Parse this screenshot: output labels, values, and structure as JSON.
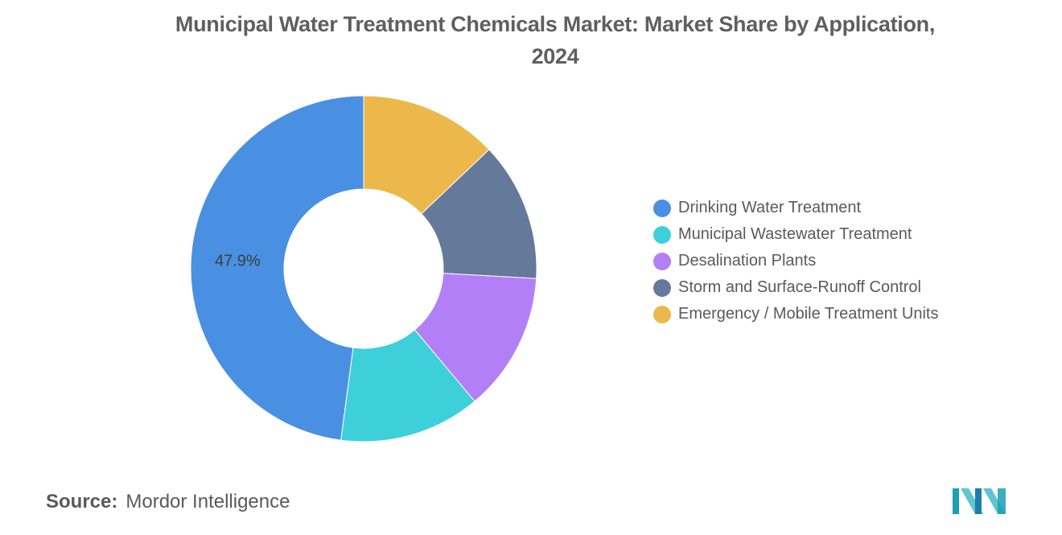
{
  "title_line1": "Municipal Water Treatment Chemicals Market: Market Share by Application,",
  "title_line2": "2024",
  "chart_data": {
    "type": "pie",
    "donut": true,
    "categories": [
      "Drinking Water Treatment",
      "Municipal Wastewater Treatment",
      "Desalination Plants",
      "Storm and Surface-Runoff Control",
      "Emergency / Mobile Treatment Units"
    ],
    "values": [
      47.9,
      13.2,
      13.0,
      13.0,
      12.9
    ],
    "value_unit": "%",
    "colors": [
      "#4a90e2",
      "#3ed0da",
      "#b27ff7",
      "#65799b",
      "#ecb74b"
    ],
    "data_labels": [
      {
        "category": "Drinking Water Treatment",
        "text": "47.9%"
      }
    ],
    "legend_position": "right"
  },
  "source": {
    "label": "Source:",
    "value": "Mordor Intelligence"
  },
  "logo_icon": "mordor-intelligence-logo-icon"
}
